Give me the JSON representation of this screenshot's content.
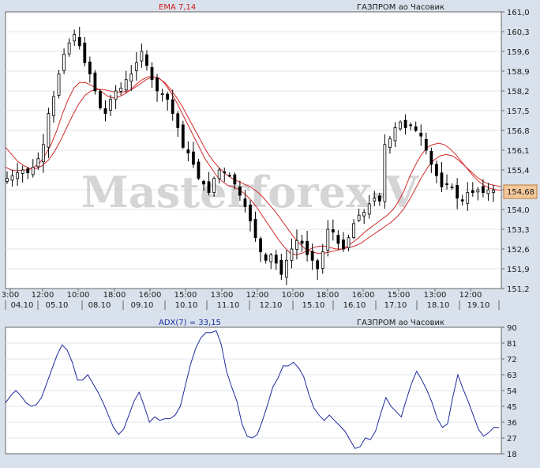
{
  "chart_data": [
    {
      "type": "candlestick",
      "title": "ГАЗПРОМ ао Часовик",
      "indicator_label": "EMA 7,14",
      "watermark": "Masterforex-V",
      "ylim": [
        151.2,
        161.0
      ],
      "y_ticks": [
        "161,0",
        "160,3",
        "159,6",
        "158,9",
        "158,2",
        "157,5",
        "156,8",
        "156,1",
        "155,4",
        "154,7",
        "154,0",
        "153,3",
        "152,6",
        "151,9",
        "151,2"
      ],
      "last_price_label": "154,68",
      "x_time_labels": [
        "3:00",
        "12:00",
        "10:00",
        "18:00",
        "16:00",
        "15:00",
        "13:00",
        "12:00",
        "10:00",
        "18:00",
        "16:00",
        "15:00",
        "13:00",
        "12:00"
      ],
      "x_date_labels": [
        "04.10",
        "05.10",
        "08.10",
        "09.10",
        "10.10",
        "11.10",
        "12.10",
        "15.10",
        "16.10",
        "17.10",
        "18.10",
        "19.10"
      ],
      "closes": [
        155.1,
        155.2,
        155.3,
        155.4,
        155.3,
        155.5,
        155.8,
        156.3,
        157.4,
        158.0,
        158.8,
        159.5,
        159.9,
        160.2,
        159.8,
        159.2,
        158.8,
        158.2,
        157.6,
        157.4,
        157.9,
        158.2,
        158.3,
        158.6,
        158.8,
        159.2,
        159.6,
        159.1,
        158.6,
        158.2,
        158.1,
        157.9,
        157.4,
        156.9,
        156.2,
        156.0,
        155.6,
        155.1,
        154.9,
        154.6,
        155.1,
        155.4,
        155.3,
        155.2,
        154.9,
        154.5,
        154.1,
        153.6,
        153.0,
        152.5,
        152.2,
        152.4,
        152.1,
        151.7,
        152.2,
        152.6,
        152.9,
        152.8,
        152.4,
        152.2,
        151.9,
        152.5,
        153.3,
        153.2,
        152.8,
        152.6,
        153.0,
        153.5,
        153.8,
        153.9,
        154.2,
        154.4,
        154.3,
        156.3,
        156.5,
        156.9,
        157.1,
        156.9,
        157.0,
        156.8,
        156.6,
        156.1,
        155.6,
        155.2,
        154.8,
        154.9,
        154.8,
        154.4,
        154.3,
        154.6,
        154.6,
        154.7,
        154.6,
        154.7,
        154.68
      ],
      "candle_width": 3,
      "ema_fast": [
        155.5,
        155.4,
        155.37,
        155.4,
        155.4,
        155.5,
        155.65,
        155.95,
        156.3,
        156.8,
        157.4,
        157.9,
        158.3,
        158.5,
        158.5,
        158.4,
        158.3,
        158.15,
        158.0,
        157.95,
        158.0,
        158.1,
        158.25,
        158.45,
        158.6,
        158.7,
        158.7,
        158.65,
        158.45,
        158.15,
        157.8,
        157.4,
        157.0,
        156.6,
        156.2,
        155.8,
        155.5,
        155.2,
        155.0,
        154.85,
        154.8,
        154.7,
        154.55,
        154.35,
        154.1,
        153.8,
        153.5,
        153.2,
        152.9,
        152.65,
        152.45,
        152.4,
        152.45,
        152.55,
        152.65,
        152.7,
        152.7,
        152.65,
        152.6,
        152.6,
        152.7,
        152.85,
        153.0,
        153.2,
        153.35,
        153.5,
        153.65,
        153.8,
        154.0,
        154.3,
        154.7,
        155.2,
        155.6,
        155.95,
        156.2,
        156.3,
        156.35,
        156.3,
        156.15,
        155.95,
        155.7,
        155.45,
        155.2,
        155.0,
        154.85,
        154.75,
        154.7,
        154.68
      ],
      "ema_slow": [
        156.2,
        155.95,
        155.7,
        155.55,
        155.45,
        155.45,
        155.55,
        155.75,
        156.05,
        156.45,
        156.9,
        157.35,
        157.75,
        158.05,
        158.2,
        158.25,
        158.25,
        158.2,
        158.15,
        158.15,
        158.2,
        158.3,
        158.45,
        158.6,
        158.7,
        158.65,
        158.5,
        158.25,
        157.95,
        157.6,
        157.2,
        156.8,
        156.4,
        156.0,
        155.7,
        155.45,
        155.25,
        155.1,
        155.0,
        154.9,
        154.8,
        154.65,
        154.45,
        154.2,
        153.95,
        153.65,
        153.35,
        153.05,
        152.8,
        152.6,
        152.5,
        152.45,
        152.45,
        152.5,
        152.55,
        152.6,
        152.65,
        152.7,
        152.8,
        152.95,
        153.1,
        153.25,
        153.4,
        153.55,
        153.75,
        154.0,
        154.35,
        154.75,
        155.15,
        155.5,
        155.75,
        155.9,
        155.95,
        155.9,
        155.75,
        155.55,
        155.35,
        155.15,
        155.0,
        154.9,
        154.85,
        154.8
      ]
    },
    {
      "type": "line",
      "title": "ГАЗПРОМ ао Часовик",
      "indicator_label": "ADX(7) = 33,15",
      "ylim": [
        18,
        90
      ],
      "y_ticks": [
        "90",
        "81",
        "72",
        "63",
        "54",
        "45",
        "36",
        "27",
        "18"
      ],
      "values": [
        47,
        51,
        54,
        51,
        47,
        45,
        46,
        50,
        58,
        66,
        74,
        80,
        77,
        70,
        60,
        60,
        63,
        58,
        53,
        47,
        40,
        33,
        29,
        32,
        40,
        48,
        53,
        45,
        36,
        39,
        37,
        38,
        38,
        40,
        45,
        57,
        69,
        78,
        84,
        87,
        87,
        88,
        80,
        65,
        56,
        48,
        35,
        28,
        27,
        29,
        37,
        46,
        56,
        61,
        68,
        68,
        70,
        67,
        62,
        52,
        44,
        40,
        37,
        40,
        37,
        34,
        31,
        26,
        21,
        22,
        27,
        26,
        31,
        41,
        50,
        45,
        42,
        39,
        49,
        58,
        65,
        60,
        54,
        47,
        38,
        33,
        35,
        50,
        63,
        55,
        48,
        40,
        32,
        28,
        30,
        33,
        33
      ]
    }
  ],
  "colors": {
    "background": "#d9e2ec",
    "plot_bg": "#ffffff",
    "ema_line": "#d32a2a",
    "adx_line": "#1e2a9e",
    "candle": "#000000",
    "grid": "#dfe6ee",
    "last_price_bg": "#f4c89a"
  }
}
